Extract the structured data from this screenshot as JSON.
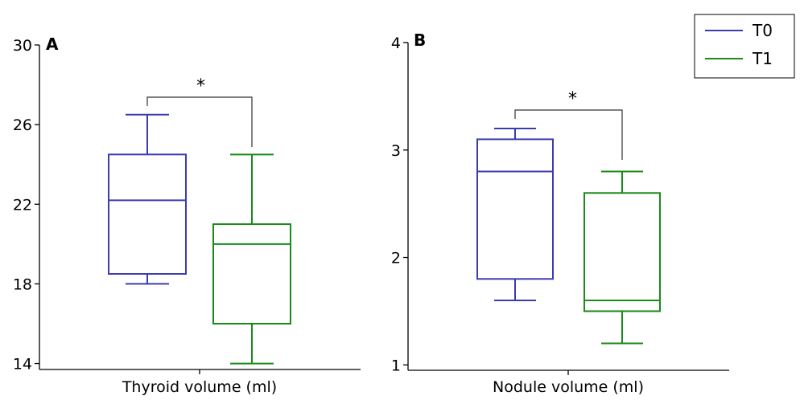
{
  "legend": {
    "placement": "top-right",
    "items": [
      {
        "label": "T0",
        "color": "#3b3bb0"
      },
      {
        "label": "T1",
        "color": "#1a8a1a"
      }
    ]
  },
  "chart_data": [
    {
      "type": "box",
      "panel_label": "A",
      "title": "",
      "xlabel": "Thyroid volume (ml)",
      "ylabel": "",
      "ylim": [
        13.7,
        30
      ],
      "yticks": [
        "14",
        "18",
        "22",
        "26",
        "30"
      ],
      "yticks_values": [
        14,
        18,
        22,
        26,
        30
      ],
      "significance": "*",
      "series": [
        {
          "name": "T0",
          "color": "#3b3bb0",
          "whisker_low": 18.0,
          "q1": 18.5,
          "median": 22.2,
          "q3": 24.5,
          "whisker_high": 26.5
        },
        {
          "name": "T1",
          "color": "#1a8a1a",
          "whisker_low": 14.0,
          "q1": 16.0,
          "median": 20.0,
          "q3": 21.0,
          "whisker_high": 24.5
        }
      ]
    },
    {
      "type": "box",
      "panel_label": "B",
      "title": "",
      "xlabel": "Nodule volume (ml)",
      "ylabel": "",
      "ylim": [
        0.95,
        4
      ],
      "yticks": [
        "1",
        "2",
        "3",
        "4"
      ],
      "yticks_values": [
        1,
        2,
        3,
        4
      ],
      "significance": "*",
      "series": [
        {
          "name": "T0",
          "color": "#3b3bb0",
          "whisker_low": 1.6,
          "q1": 1.8,
          "median": 2.8,
          "q3": 3.1,
          "whisker_high": 3.2
        },
        {
          "name": "T1",
          "color": "#1a8a1a",
          "whisker_low": 1.2,
          "q1": 1.5,
          "median": 1.6,
          "q3": 2.6,
          "whisker_high": 2.8
        }
      ]
    }
  ]
}
